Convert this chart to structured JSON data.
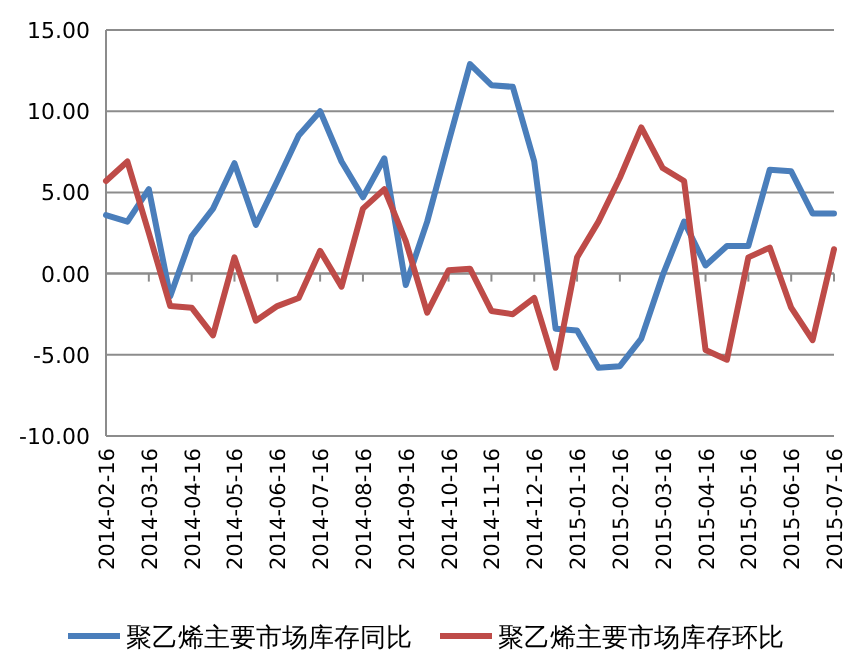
{
  "chart_data": {
    "type": "line",
    "categories": [
      "2014-02-16",
      null,
      "2014-03-16",
      null,
      "2014-04-16",
      null,
      "2014-05-16",
      null,
      "2014-06-16",
      null,
      "2014-07-16",
      null,
      "2014-08-16",
      null,
      "2014-09-16",
      null,
      "2014-10-16",
      null,
      "2014-11-16",
      null,
      "2014-12-16",
      null,
      "2015-01-16",
      null,
      "2015-02-16",
      null,
      "2015-03-16",
      null,
      "2015-04-16",
      null,
      "2015-05-16",
      null,
      "2015-06-16",
      null,
      "2015-07-16"
    ],
    "series": [
      {
        "name": "聚乙烯主要市场库存同比",
        "color": "#4a7ebb",
        "values": [
          3.6,
          3.2,
          5.2,
          -1.4,
          2.3,
          4.0,
          6.8,
          3.0,
          5.7,
          8.5,
          10.0,
          6.9,
          4.7,
          7.1,
          -0.7,
          3.2,
          8.1,
          12.9,
          11.6,
          11.5,
          6.9,
          -3.4,
          -3.5,
          -5.8,
          -5.7,
          -4.0,
          -0.1,
          3.2,
          0.5,
          1.7,
          1.7,
          6.4,
          6.3,
          3.7,
          3.7
        ]
      },
      {
        "name": "聚乙烯主要市场库存环比",
        "color": "#be4b48",
        "values": [
          5.7,
          6.9,
          2.5,
          -2.0,
          -2.1,
          -3.8,
          1.0,
          -2.9,
          -2.0,
          -1.5,
          1.4,
          -0.8,
          4.0,
          5.2,
          2.0,
          -2.4,
          0.2,
          0.3,
          -2.3,
          -2.5,
          -1.5,
          -5.8,
          1.0,
          3.2,
          5.9,
          9.0,
          6.5,
          5.7,
          -4.7,
          -5.3,
          1.0,
          1.6,
          -2.1,
          -4.1,
          1.5
        ]
      }
    ],
    "ylim": [
      -10,
      15
    ],
    "yticks": [
      {
        "value": -10,
        "label": "-10.00"
      },
      {
        "value": -5,
        "label": "-5.00"
      },
      {
        "value": 0,
        "label": "0.00"
      },
      {
        "value": 5,
        "label": "5.00"
      },
      {
        "value": 10,
        "label": "10.00"
      },
      {
        "value": 15,
        "label": "15.00"
      }
    ],
    "grid": "y",
    "legend": "bottom",
    "marker": "none",
    "line_style": "solid"
  }
}
